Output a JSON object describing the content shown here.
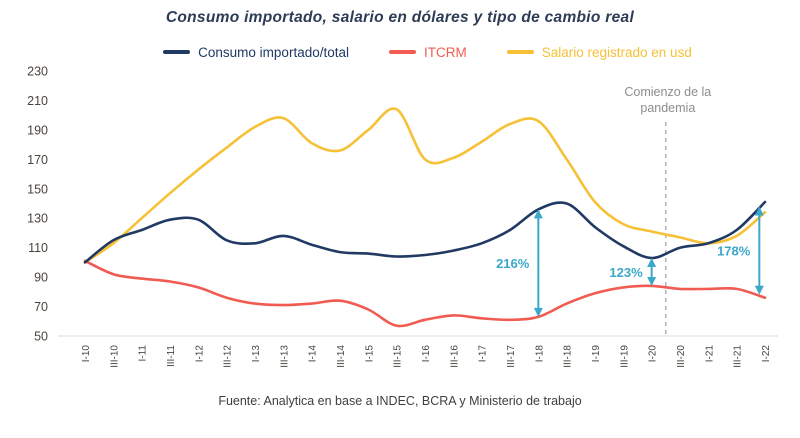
{
  "title": "Consumo importado, salario en dólares y tipo de cambio real",
  "footer": "Fuente: Analytica en base a INDEC, BCRA y Ministerio de trabajo",
  "legend": [
    {
      "label": "Consumo importado/total",
      "color": "#203a63"
    },
    {
      "label": "ITCRM",
      "color": "#f15b51"
    },
    {
      "label": "Salario registrado en usd",
      "color": "#f6c137"
    }
  ],
  "pandemic_note": {
    "text_line1": "Comienzo de la",
    "text_line2": "pandemia",
    "x_index": 20.5,
    "line_color": "#9e9e9e",
    "text_color": "#8d8d8d"
  },
  "chart_data": {
    "type": "line",
    "x_labels": [
      "I-10",
      "III-10",
      "I-11",
      "III-11",
      "I-12",
      "III-12",
      "I-13",
      "III-13",
      "I-14",
      "III-14",
      "I-15",
      "III-15",
      "I-16",
      "III-16",
      "I-17",
      "III-17",
      "I-18",
      "III-18",
      "I-19",
      "III-19",
      "I-20",
      "III-20",
      "I-21",
      "III-21",
      "I-22"
    ],
    "y_ticks": [
      230,
      210,
      190,
      170,
      150,
      130,
      110,
      90,
      70,
      50
    ],
    "ylim": [
      50,
      230
    ],
    "grid": false,
    "legend_position": "top",
    "series": [
      {
        "name": "Consumo importado/total",
        "color": "#203a63",
        "values": [
          100,
          115,
          122,
          129,
          129,
          115,
          113,
          118,
          112,
          107,
          106,
          104,
          105,
          108,
          113,
          122,
          136,
          140,
          124,
          111,
          103,
          110,
          113,
          122,
          141
        ]
      },
      {
        "name": "ITCRM",
        "color": "#f15b51",
        "values": [
          101,
          92,
          89,
          87,
          83,
          76,
          72,
          71,
          72,
          74,
          68,
          57,
          61,
          64,
          62,
          61,
          63,
          72,
          79,
          83,
          84,
          82,
          82,
          82,
          76
        ]
      },
      {
        "name": "Salario registrado en usd",
        "color": "#f6c137",
        "values": [
          100,
          113,
          130,
          147,
          163,
          178,
          192,
          198,
          181,
          176,
          190,
          204,
          170,
          171,
          182,
          194,
          196,
          170,
          141,
          126,
          121,
          117,
          113,
          118,
          134
        ]
      }
    ],
    "annotations": [
      {
        "label": "216%",
        "x_index": 16,
        "y_from": 63,
        "y_to": 136
      },
      {
        "label": "123%",
        "x_index": 20,
        "y_from": 84,
        "y_to": 103
      },
      {
        "label": "178%",
        "x_index": 23.8,
        "y_from": 78,
        "y_to": 138
      }
    ],
    "annotation_color": "#3ba8ca"
  }
}
